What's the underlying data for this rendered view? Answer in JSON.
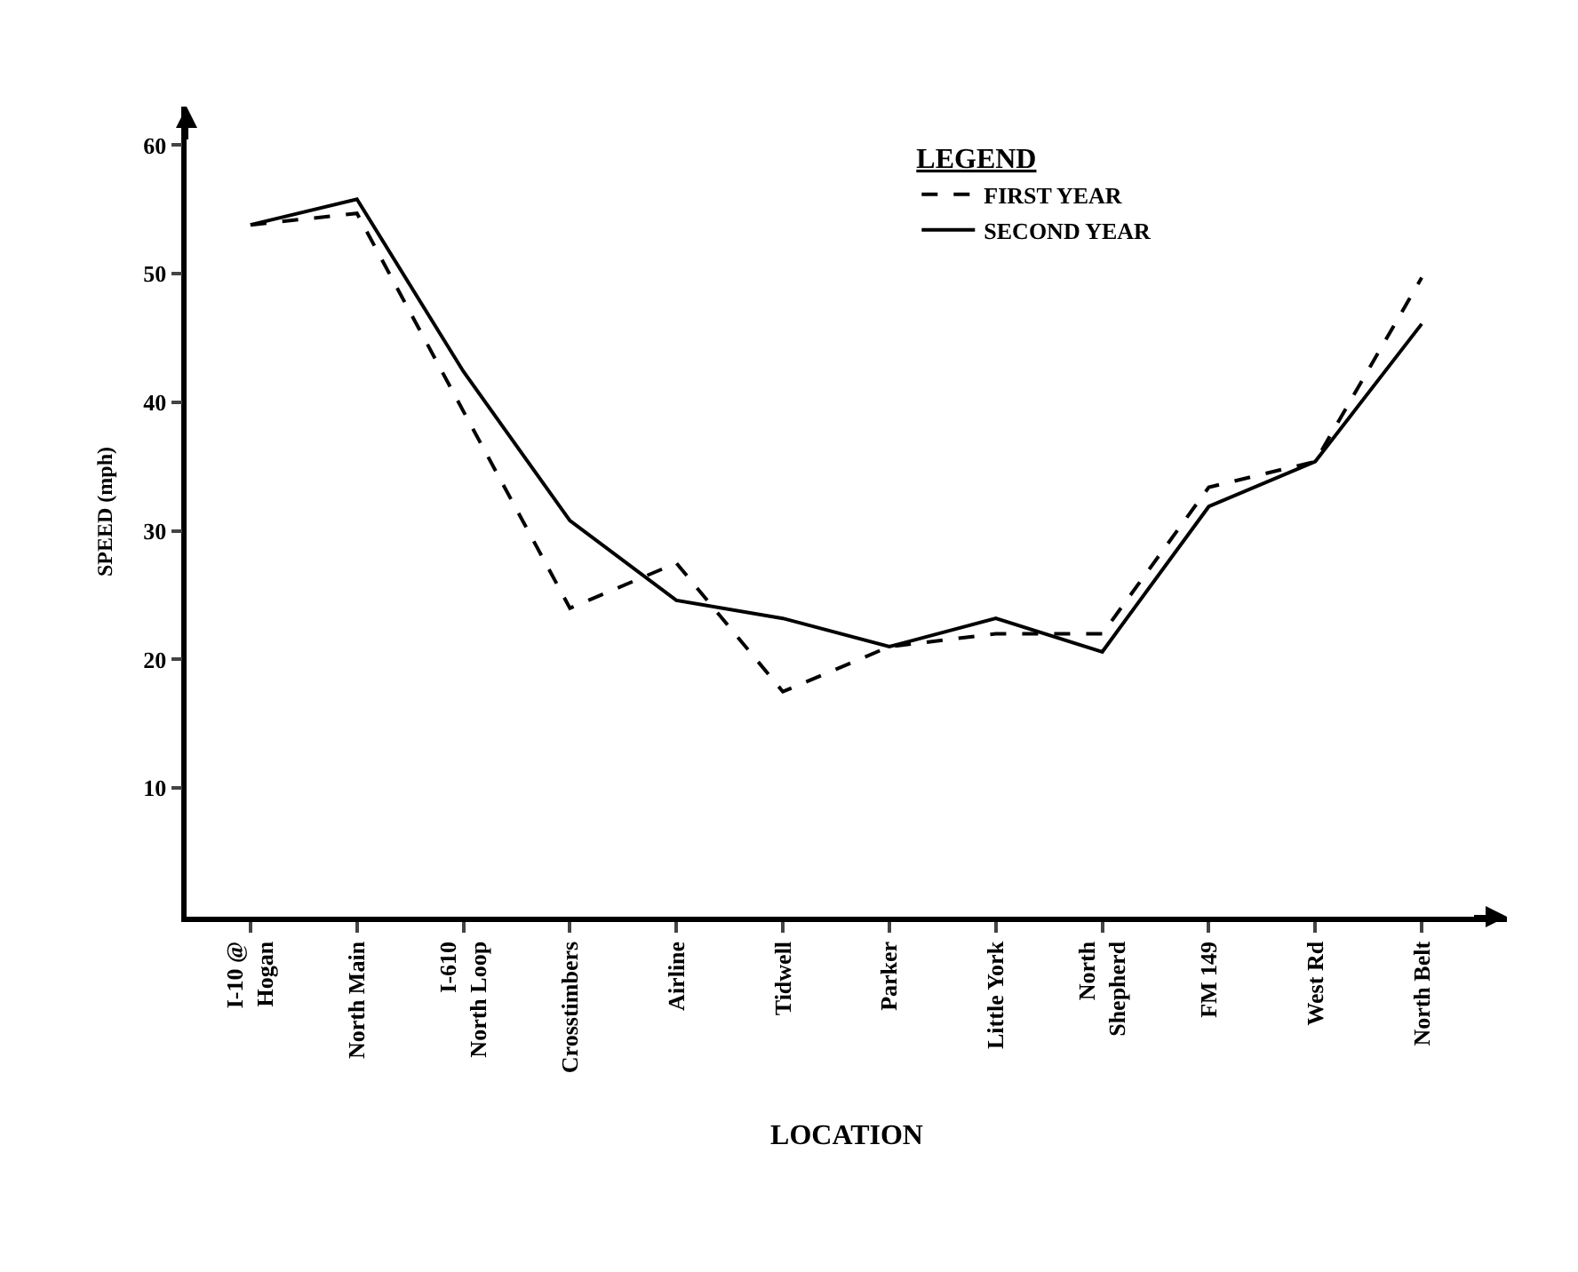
{
  "chart_data": {
    "type": "line",
    "xlabel": "LOCATION",
    "ylabel": "SPEED (mph)",
    "legend_title": "LEGEND",
    "categories": [
      "I-10 @\nHogan",
      "North Main",
      "I-610\nNorth Loop",
      "Crosstimbers",
      "Airline",
      "Tidwell",
      "Parker",
      "Little York",
      "North\nShepherd",
      "FM 149",
      "West Rd",
      "North Belt"
    ],
    "series": [
      {
        "name": "FIRST YEAR",
        "color": "#000000",
        "line_style": "dashed",
        "values": [
          53.8,
          54.7,
          39.3,
          24.0,
          27.5,
          17.5,
          21.0,
          22.0,
          22.0,
          33.4,
          35.4,
          49.7
        ]
      },
      {
        "name": "SECOND YEAR",
        "color": "#000000",
        "line_style": "solid",
        "values": [
          53.8,
          55.8,
          42.4,
          30.8,
          24.6,
          23.2,
          21.0,
          23.2,
          20.6,
          31.9,
          35.4,
          46.1
        ]
      }
    ],
    "ylim": [
      0,
      63
    ],
    "yticks": [
      10,
      20,
      30,
      40,
      50,
      60
    ],
    "legend": "top right",
    "marker": "none"
  }
}
